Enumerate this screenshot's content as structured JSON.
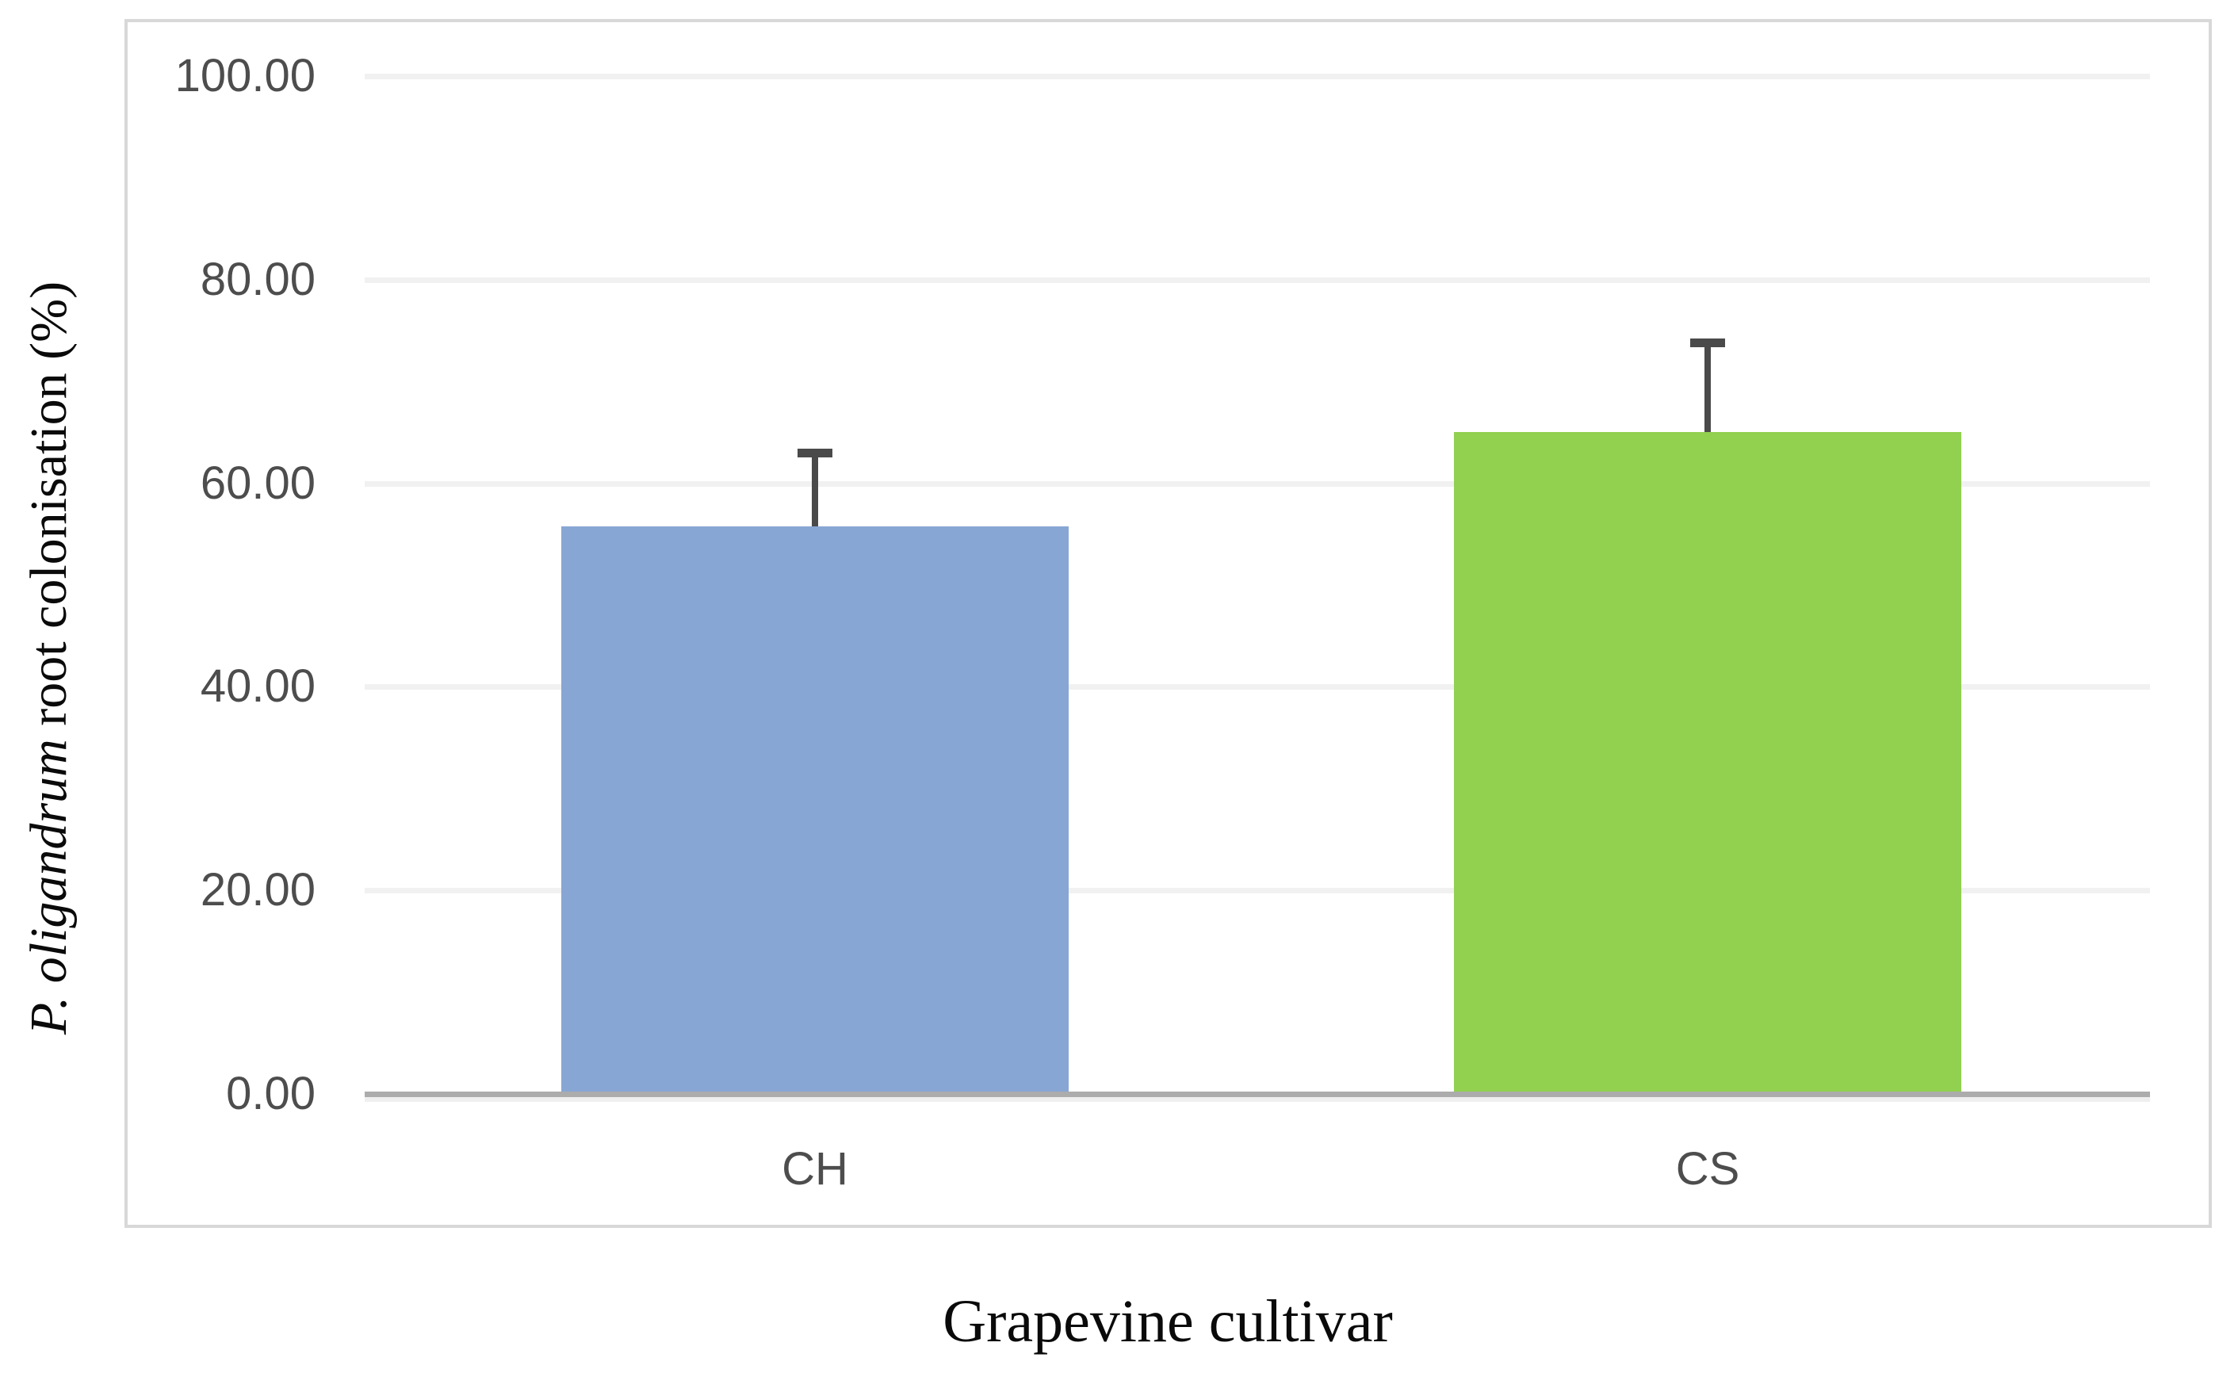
{
  "figure": {
    "background": "#FFFFFF"
  },
  "chart_data": {
    "type": "bar",
    "title": "",
    "xlabel": "Grapevine cultivar",
    "ylabel": "P. oligandrum root colonisation (%)",
    "ylabel_italic_part": "P. oligandrum",
    "ylabel_regular_part": " root colonisation (%)",
    "categories": [
      "CH",
      "CS"
    ],
    "series": [
      {
        "name": "P. oligandrum root colonisation (%)",
        "values": [
          55.8,
          65.0
        ],
        "error_upper": [
          7.2,
          8.8
        ]
      }
    ],
    "ylim": [
      0,
      100
    ],
    "grid": "horizontal",
    "legend": "none",
    "yticks": [
      {
        "value": 100,
        "label": "100.00"
      },
      {
        "value": 80,
        "label": "80.00"
      },
      {
        "value": 60,
        "label": "60.00"
      },
      {
        "value": 40,
        "label": "40.00"
      },
      {
        "value": 20,
        "label": "20.00"
      },
      {
        "value": 0,
        "label": "0.00"
      }
    ],
    "colors": {
      "bars": [
        "#88A6D4",
        "#92D050"
      ],
      "gridline": "#F1F1F1",
      "axis_line": "#ACACAC",
      "error_bar": "#4A4A4A",
      "tick_text": "#4D4D4D",
      "title_text": "#0A0A0A",
      "chart_border": "#D8D8D8"
    }
  }
}
